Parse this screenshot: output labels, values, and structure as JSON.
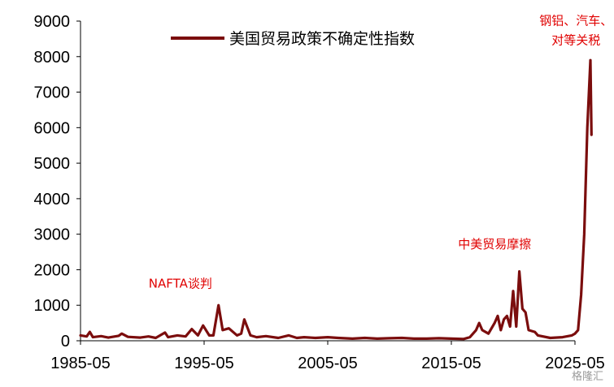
{
  "chart_data": {
    "type": "line",
    "title": "",
    "xlabel": "",
    "ylabel": "",
    "ylim": [
      0,
      9000
    ],
    "yticks": [
      0,
      1000,
      2000,
      3000,
      4000,
      5000,
      6000,
      7000,
      8000,
      9000
    ],
    "xticks": [
      "1985-05",
      "1995-05",
      "2005-05",
      "2015-05",
      "2025-05"
    ],
    "xlim": [
      "1985-05",
      "2025-05"
    ],
    "grid": false,
    "legend_position": "top",
    "series": [
      {
        "name": "美国贸易政策不确定性指数",
        "color": "#7b0d0d",
        "points": [
          [
            "1985-05",
            150
          ],
          [
            "1985-11",
            120
          ],
          [
            "1986-02",
            250
          ],
          [
            "1986-05",
            100
          ],
          [
            "1987-01",
            130
          ],
          [
            "1987-08",
            90
          ],
          [
            "1988-06",
            140
          ],
          [
            "1988-09",
            200
          ],
          [
            "1989-03",
            110
          ],
          [
            "1990-03",
            90
          ],
          [
            "1990-11",
            120
          ],
          [
            "1991-06",
            80
          ],
          [
            "1992-03",
            230
          ],
          [
            "1992-06",
            100
          ],
          [
            "1993-03",
            150
          ],
          [
            "1993-11",
            120
          ],
          [
            "1994-05",
            330
          ],
          [
            "1994-11",
            150
          ],
          [
            "1995-04",
            430
          ],
          [
            "1995-10",
            150
          ],
          [
            "1996-02",
            150
          ],
          [
            "1996-07",
            1000
          ],
          [
            "1996-11",
            300
          ],
          [
            "1997-05",
            350
          ],
          [
            "1998-01",
            150
          ],
          [
            "1998-05",
            200
          ],
          [
            "1998-08",
            600
          ],
          [
            "1999-02",
            150
          ],
          [
            "1999-08",
            100
          ],
          [
            "2000-05",
            130
          ],
          [
            "2001-05",
            80
          ],
          [
            "2002-03",
            150
          ],
          [
            "2002-11",
            80
          ],
          [
            "2003-06",
            100
          ],
          [
            "2004-05",
            80
          ],
          [
            "2005-05",
            100
          ],
          [
            "2006-03",
            80
          ],
          [
            "2007-05",
            60
          ],
          [
            "2008-05",
            80
          ],
          [
            "2009-05",
            60
          ],
          [
            "2010-05",
            70
          ],
          [
            "2011-05",
            80
          ],
          [
            "2012-05",
            60
          ],
          [
            "2013-05",
            60
          ],
          [
            "2014-05",
            70
          ],
          [
            "2015-05",
            60
          ],
          [
            "2016-05",
            50
          ],
          [
            "2016-11",
            100
          ],
          [
            "2017-05",
            300
          ],
          [
            "2017-08",
            500
          ],
          [
            "2017-11",
            300
          ],
          [
            "2018-05",
            200
          ],
          [
            "2018-11",
            500
          ],
          [
            "2019-02",
            700
          ],
          [
            "2019-05",
            300
          ],
          [
            "2019-08",
            600
          ],
          [
            "2019-11",
            700
          ],
          [
            "2020-02",
            400
          ],
          [
            "2020-05",
            1400
          ],
          [
            "2020-08",
            400
          ],
          [
            "2020-11",
            1950
          ],
          [
            "2021-02",
            900
          ],
          [
            "2021-05",
            800
          ],
          [
            "2021-08",
            300
          ],
          [
            "2022-02",
            250
          ],
          [
            "2022-05",
            150
          ],
          [
            "2023-05",
            80
          ],
          [
            "2024-05",
            100
          ],
          [
            "2025-02",
            150
          ],
          [
            "2025-05",
            200
          ],
          [
            "2025-08",
            300
          ],
          [
            "2025-11",
            1300
          ],
          [
            "2026-02",
            3000
          ],
          [
            "2026-05",
            6000
          ],
          [
            "2026-08",
            7900
          ],
          [
            "2026-09",
            5800
          ]
        ]
      }
    ],
    "annotations": [
      {
        "text": "NAFTA谈判",
        "x": "1993-06",
        "y": 1500
      },
      {
        "text": "中美贸易摩擦",
        "x": "2018-11",
        "y": 2600
      },
      {
        "text": "钢铝、汽车、",
        "x": "2025-06",
        "y": 8900
      },
      {
        "text": "对等关税",
        "x": "2025-06",
        "y": 8350
      }
    ]
  },
  "watermark": "格隆汇"
}
